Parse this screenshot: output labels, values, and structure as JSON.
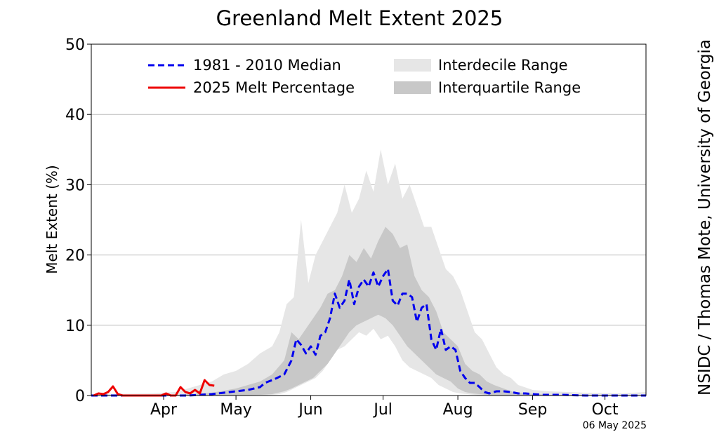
{
  "chart_data": {
    "type": "area",
    "title": "Greenland Melt Extent 2025",
    "xlabel": "",
    "ylabel": "Melt Extent (%)",
    "ylim": [
      0,
      50
    ],
    "yticks": [
      "0",
      "10",
      "20",
      "30",
      "40",
      "50"
    ],
    "x_unit": "day of year",
    "xlim": [
      75,
      305
    ],
    "month_ticks": [
      {
        "label": "Apr",
        "day": 105
      },
      {
        "label": "May",
        "day": 135
      },
      {
        "label": "Jun",
        "day": 166
      },
      {
        "label": "Jul",
        "day": 196
      },
      {
        "label": "Aug",
        "day": 227
      },
      {
        "label": "Sep",
        "day": 258
      },
      {
        "label": "Oct",
        "day": 288
      }
    ],
    "grid": "horizontal",
    "legend_position": "top",
    "legend": {
      "median": "1981 - 2010 Median",
      "current": "2025 Melt Percentage",
      "interdecile": "Interdecile Range",
      "interquartile": "Interquartile Range"
    },
    "colors": {
      "median": "#0000ee",
      "current": "#ee0000",
      "interdecile": "#e6e6e6",
      "interquartile": "#c8c8c8",
      "grid": "#bbbbbb"
    },
    "series": [
      {
        "name": "1981 - 2010 Median",
        "style": "dashed",
        "x": [
          75,
          85,
          95,
          105,
          115,
          120,
          125,
          130,
          135,
          140,
          145,
          147,
          150,
          152,
          155,
          158,
          160,
          162,
          164,
          166,
          168,
          170,
          172,
          174,
          176,
          178,
          180,
          182,
          184,
          186,
          188,
          190,
          192,
          194,
          196,
          198,
          200,
          202,
          204,
          206,
          208,
          210,
          212,
          214,
          216,
          218,
          220,
          222,
          224,
          226,
          228,
          230,
          232,
          234,
          236,
          238,
          240,
          243,
          246,
          249,
          252,
          255,
          258,
          262,
          270,
          280,
          290,
          300,
          305
        ],
        "values": [
          0,
          0,
          0,
          0,
          0,
          0.1,
          0.2,
          0.4,
          0.6,
          0.8,
          1.2,
          1.8,
          2.2,
          2.5,
          3.0,
          5.0,
          8.0,
          7.2,
          6.0,
          7.0,
          5.8,
          8.5,
          9.0,
          11.0,
          14.5,
          12.5,
          13.5,
          16.5,
          13.0,
          15.5,
          16.5,
          15.5,
          17.5,
          15.5,
          17.0,
          18.0,
          13.5,
          12.8,
          14.5,
          14.5,
          14.0,
          10.5,
          12.5,
          13.0,
          8.0,
          6.5,
          9.5,
          6.5,
          7.0,
          6.5,
          3.5,
          2.5,
          1.8,
          1.8,
          1.2,
          0.5,
          0.3,
          0.6,
          0.6,
          0.5,
          0.3,
          0.3,
          0.2,
          0.1,
          0.1,
          0,
          0,
          0,
          0
        ]
      },
      {
        "name": "2025 Melt Percentage",
        "style": "solid",
        "x": [
          76,
          78,
          80,
          82,
          84,
          86,
          88,
          90,
          92,
          94,
          96,
          98,
          100,
          102,
          104,
          106,
          108,
          110,
          112,
          114,
          116,
          118,
          120,
          122,
          124,
          126
        ],
        "values": [
          0,
          0.3,
          0.2,
          0.5,
          1.3,
          0.2,
          0,
          0,
          0,
          0,
          0,
          0,
          0,
          0,
          0,
          0.3,
          0,
          0,
          1.2,
          0.5,
          0.3,
          0.8,
          0.3,
          2.2,
          1.5,
          1.4
        ]
      }
    ],
    "bands": [
      {
        "name": "Interdecile Range",
        "x": [
          75,
          100,
          110,
          120,
          125,
          130,
          135,
          140,
          145,
          150,
          153,
          156,
          159,
          162,
          165,
          168,
          171,
          174,
          177,
          180,
          183,
          186,
          189,
          192,
          195,
          198,
          201,
          204,
          207,
          210,
          213,
          216,
          219,
          222,
          225,
          228,
          231,
          234,
          237,
          240,
          243,
          246,
          249,
          252,
          258,
          265,
          280,
          295,
          305
        ],
        "upper": [
          0.2,
          0.3,
          0.5,
          1.5,
          2.0,
          3.0,
          3.5,
          4.5,
          6.0,
          7.0,
          9.0,
          13.0,
          14.0,
          25.0,
          16.0,
          20.0,
          22.0,
          24.0,
          26.0,
          30.0,
          26.0,
          28.0,
          32.0,
          29.0,
          35.0,
          30.0,
          33.0,
          28.0,
          30.0,
          27.0,
          24.0,
          24.0,
          21.0,
          18.0,
          17.0,
          15.0,
          12.0,
          9.0,
          8.0,
          6.0,
          4.0,
          3.0,
          2.5,
          1.5,
          0.8,
          0.6,
          0.4,
          0.3,
          0.5
        ],
        "lower": [
          0,
          0,
          0,
          0,
          0,
          0,
          0,
          0,
          0,
          0.1,
          0.2,
          0.5,
          1.0,
          1.5,
          2.0,
          2.5,
          3.5,
          5.0,
          6.5,
          7.0,
          8.0,
          9.0,
          8.5,
          9.5,
          8.0,
          8.5,
          7.0,
          5.0,
          4.0,
          3.5,
          3.0,
          2.5,
          1.5,
          1.0,
          0.5,
          0.3,
          0.2,
          0.1,
          0,
          0,
          0,
          0,
          0,
          0,
          0,
          0,
          0,
          0,
          0
        ]
      },
      {
        "name": "Interquartile Range",
        "x": [
          75,
          110,
          125,
          135,
          145,
          150,
          155,
          158,
          161,
          164,
          167,
          170,
          173,
          176,
          179,
          182,
          185,
          188,
          191,
          194,
          197,
          200,
          203,
          206,
          209,
          212,
          215,
          218,
          221,
          224,
          227,
          230,
          233,
          236,
          239,
          242,
          246,
          250,
          255,
          265,
          305
        ],
        "upper": [
          0,
          0.1,
          0.4,
          1.0,
          2.0,
          3.0,
          5.0,
          9.0,
          8.0,
          9.5,
          11.0,
          12.5,
          14.5,
          15.0,
          17.0,
          20.0,
          19.0,
          21.0,
          19.5,
          22.0,
          24.0,
          23.0,
          21.0,
          21.5,
          17.0,
          15.0,
          14.0,
          12.0,
          9.0,
          8.0,
          7.0,
          4.5,
          3.5,
          3.0,
          2.0,
          1.5,
          1.0,
          0.5,
          0.3,
          0.1,
          0
        ],
        "lower": [
          0,
          0,
          0,
          0,
          0.1,
          0.2,
          0.6,
          1.0,
          1.5,
          2.0,
          2.5,
          3.5,
          4.5,
          6.0,
          7.5,
          9.0,
          10.0,
          10.5,
          11.0,
          11.5,
          11.0,
          10.0,
          8.5,
          7.0,
          6.0,
          5.0,
          4.0,
          3.0,
          2.5,
          2.0,
          1.0,
          0.5,
          0.3,
          0.2,
          0.1,
          0,
          0,
          0,
          0,
          0,
          0
        ]
      }
    ]
  },
  "credit": "NSIDC / Thomas Mote, University of Georgia",
  "date_stamp": "06 May 2025"
}
